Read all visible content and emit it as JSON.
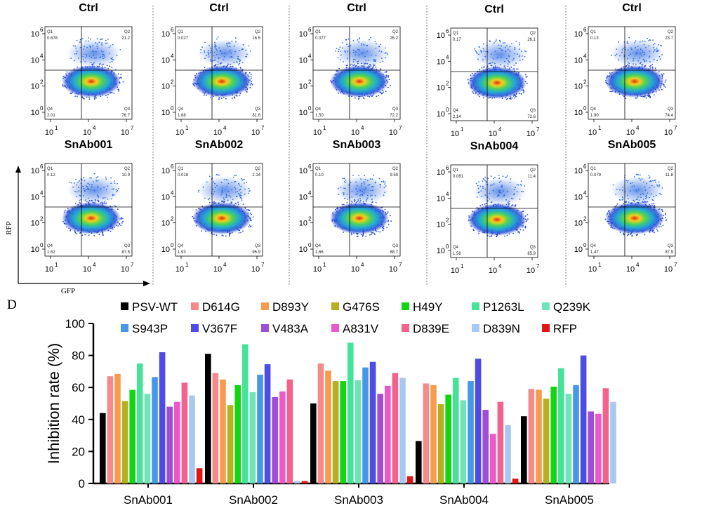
{
  "panel_d_label": "D",
  "flow_axes": {
    "xlabel": "GFP",
    "ylabel": "RFP"
  },
  "tick_labels": {
    "x": [
      {
        "base": "10",
        "exp": "1"
      },
      {
        "base": "10",
        "exp": "4"
      },
      {
        "base": "10",
        "exp": "7"
      }
    ],
    "y": [
      {
        "base": "10",
        "exp": "0"
      },
      {
        "base": "10",
        "exp": "2"
      },
      {
        "base": "10",
        "exp": "4"
      },
      {
        "base": "10",
        "exp": "6"
      }
    ]
  },
  "flow_plots": [
    {
      "title": "Ctrl",
      "q1": "0.678",
      "q2": "21.2",
      "q3": "76.7",
      "q4": "2.01"
    },
    {
      "title": "Ctrl",
      "q1": "0.027",
      "q2": "16.5",
      "q3": "81.6",
      "q4": "1.88"
    },
    {
      "title": "Ctrl",
      "q1": "0.077",
      "q2": "26.2",
      "q3": "72.2",
      "q4": "1.50"
    },
    {
      "title": "Ctrl",
      "q1": "0.17",
      "q2": "26.1",
      "q3": "72.6",
      "q4": "2.14"
    },
    {
      "title": "Ctrl",
      "q1": "0.13",
      "q2": "23.7",
      "q3": "74.4",
      "q4": "1.90"
    },
    {
      "title": "SnAb001",
      "q1": "0.12",
      "q2": "10.9",
      "q3": "87.5",
      "q4": "1.52"
    },
    {
      "title": "SnAb002",
      "q1": "0.018",
      "q2": "2.14",
      "q3": "95.9",
      "q4": "1.93"
    },
    {
      "title": "SnAb003",
      "q1": "0.10",
      "q2": "9.59",
      "q3": "88.7",
      "q4": "1.66"
    },
    {
      "title": "SnAb004",
      "q1": "0.061",
      "q2": "11.4",
      "q3": "85.9",
      "q4": "1.58"
    },
    {
      "title": "SnAb005",
      "q1": "0.079",
      "q2": "11.8",
      "q3": "87.9",
      "q4": "1.47"
    }
  ],
  "quadrant_names": [
    "Q1",
    "Q2",
    "Q3",
    "Q4"
  ],
  "chart_data": {
    "type": "bar",
    "title": "",
    "xlabel": "",
    "ylabel": "Inhibition rate (%)",
    "ylim": [
      0,
      100
    ],
    "yticks": [
      "0",
      "20",
      "40",
      "60",
      "80",
      "100"
    ],
    "grid": false,
    "legend_position": "top",
    "categories": [
      "SnAb001",
      "SnAb002",
      "SnAb003",
      "SnAb004",
      "SnAb005"
    ],
    "series": [
      {
        "name": "PSV-WT",
        "color": "#000000",
        "values": [
          44,
          81,
          50,
          26.5,
          42
        ]
      },
      {
        "name": "D614G",
        "color": "#f48a8a",
        "values": [
          67,
          69,
          75,
          62.5,
          59
        ]
      },
      {
        "name": "D893Y",
        "color": "#f79c4f",
        "values": [
          68.5,
          65,
          70.5,
          61.5,
          58.5
        ]
      },
      {
        "name": "G476S",
        "color": "#b5b020",
        "values": [
          51.5,
          49,
          64,
          49.5,
          53
        ]
      },
      {
        "name": "H49Y",
        "color": "#12d612",
        "values": [
          58.5,
          61.5,
          64,
          55.5,
          60.5
        ]
      },
      {
        "name": "P1263L",
        "color": "#45e29a",
        "values": [
          75,
          87,
          88,
          66,
          72
        ]
      },
      {
        "name": "Q239K",
        "color": "#6fe4b6",
        "values": [
          56,
          57,
          64.5,
          52,
          56
        ]
      },
      {
        "name": "S943P",
        "color": "#4797e8",
        "values": [
          66.5,
          68,
          72.5,
          64,
          61.5
        ]
      },
      {
        "name": "V367F",
        "color": "#4d4de6",
        "values": [
          82,
          74.5,
          76,
          78,
          80
        ]
      },
      {
        "name": "V483A",
        "color": "#a14cd6",
        "values": [
          48,
          54,
          56,
          46,
          45
        ]
      },
      {
        "name": "A831V",
        "color": "#ec58c9",
        "values": [
          51,
          57.5,
          61,
          31,
          43.5
        ]
      },
      {
        "name": "D839E",
        "color": "#f2628c",
        "values": [
          63,
          65,
          69,
          51,
          59.5
        ]
      },
      {
        "name": "D839N",
        "color": "#a7c8ef",
        "values": [
          55,
          1.5,
          66,
          36.5,
          51
        ]
      },
      {
        "name": "RFP",
        "color": "#e21414",
        "values": [
          9.5,
          1.5,
          4.5,
          3,
          null
        ]
      }
    ]
  }
}
